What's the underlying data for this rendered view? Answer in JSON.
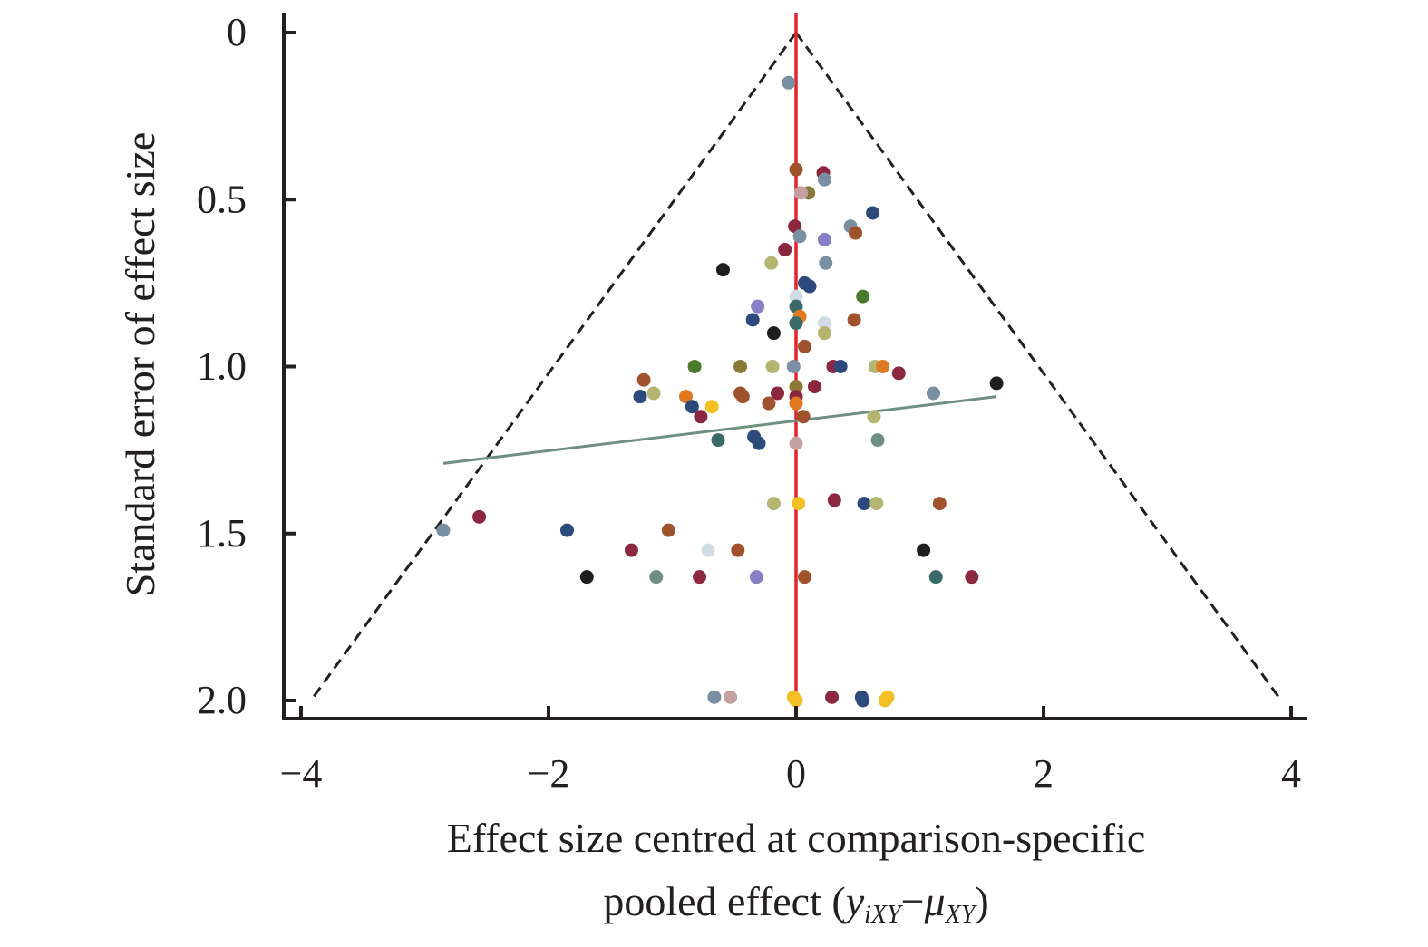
{
  "chart_data": {
    "type": "scatter",
    "title": "",
    "xlabel_line1": "Effect size centred at comparison-specific",
    "xlabel_line2_prefix": "pooled effect (",
    "xlabel_y": "y",
    "xlabel_y_sub": "iXY",
    "xlabel_minus": "−",
    "xlabel_mu": "μ",
    "xlabel_mu_sub": "XY",
    "xlabel_suffix": ")",
    "ylabel": "Standard error of effect size",
    "xlim": [
      -4,
      4
    ],
    "ylim": [
      0,
      2.0
    ],
    "y_reversed": true,
    "x_ticks": [
      -4,
      -2,
      0,
      2,
      4
    ],
    "x_tick_labels": [
      "−4",
      "−2",
      "0",
      "2",
      "4"
    ],
    "y_ticks": [
      0,
      0.5,
      1.0,
      1.5,
      2.0
    ],
    "y_tick_labels": [
      "0",
      "0.5",
      "1.0",
      "1.5",
      "2.0"
    ],
    "zero_line": {
      "x": 0,
      "color": "#e2242b"
    },
    "funnel": {
      "apex": [
        0,
        0
      ],
      "left_base": [
        -3.92,
        2.0
      ],
      "right_base": [
        3.92,
        2.0
      ],
      "style": "dashed",
      "color": "#231f20"
    },
    "regression_line": {
      "from": [
        -2.85,
        1.29
      ],
      "to": [
        1.62,
        1.09
      ],
      "color": "#6f8f82"
    },
    "points": [
      {
        "x": -0.06,
        "y": 0.15,
        "color": "#7a8fa3"
      },
      {
        "x": 0.0,
        "y": 0.41,
        "color": "#a0522d"
      },
      {
        "x": 0.22,
        "y": 0.42,
        "color": "#8b2840"
      },
      {
        "x": 0.23,
        "y": 0.44,
        "color": "#7a8fa3"
      },
      {
        "x": 0.1,
        "y": 0.48,
        "color": "#8a7a3a"
      },
      {
        "x": 0.04,
        "y": 0.48,
        "color": "#c4a0a0"
      },
      {
        "x": 0.62,
        "y": 0.54,
        "color": "#2c4a7c"
      },
      {
        "x": 0.44,
        "y": 0.58,
        "color": "#7a8fa3"
      },
      {
        "x": -0.01,
        "y": 0.58,
        "color": "#8b2840"
      },
      {
        "x": 0.48,
        "y": 0.6,
        "color": "#a0522d"
      },
      {
        "x": 0.03,
        "y": 0.61,
        "color": "#7a8fa3"
      },
      {
        "x": 0.23,
        "y": 0.62,
        "color": "#8680c8"
      },
      {
        "x": -0.09,
        "y": 0.65,
        "color": "#8b2840"
      },
      {
        "x": -0.2,
        "y": 0.69,
        "color": "#b5b572"
      },
      {
        "x": 0.24,
        "y": 0.69,
        "color": "#7a8fa3"
      },
      {
        "x": -0.59,
        "y": 0.71,
        "color": "#1e1e1e"
      },
      {
        "x": 0.07,
        "y": 0.75,
        "color": "#2c4a7c"
      },
      {
        "x": 0.11,
        "y": 0.76,
        "color": "#2c4a7c"
      },
      {
        "x": 0.54,
        "y": 0.79,
        "color": "#4a7a2c"
      },
      {
        "x": 0.0,
        "y": 0.79,
        "color": "#d0dde4"
      },
      {
        "x": 0.0,
        "y": 0.82,
        "color": "#3a6a68"
      },
      {
        "x": -0.31,
        "y": 0.82,
        "color": "#8680c8"
      },
      {
        "x": 0.03,
        "y": 0.85,
        "color": "#e07820"
      },
      {
        "x": 0.47,
        "y": 0.86,
        "color": "#a0522d"
      },
      {
        "x": -0.35,
        "y": 0.86,
        "color": "#2c4a7c"
      },
      {
        "x": 0.0,
        "y": 0.87,
        "color": "#3a6a68"
      },
      {
        "x": 0.23,
        "y": 0.87,
        "color": "#d0dde4"
      },
      {
        "x": -0.18,
        "y": 0.9,
        "color": "#1e1e1e"
      },
      {
        "x": 0.23,
        "y": 0.9,
        "color": "#b5b572"
      },
      {
        "x": 0.07,
        "y": 0.94,
        "color": "#a0522d"
      },
      {
        "x": -0.82,
        "y": 1.0,
        "color": "#4a7a2c"
      },
      {
        "x": -0.45,
        "y": 1.0,
        "color": "#8a7a3a"
      },
      {
        "x": -0.19,
        "y": 1.0,
        "color": "#b5b572"
      },
      {
        "x": -0.02,
        "y": 1.0,
        "color": "#7a8fa3"
      },
      {
        "x": 0.3,
        "y": 1.0,
        "color": "#8b2840"
      },
      {
        "x": 0.36,
        "y": 1.0,
        "color": "#2c4a7c"
      },
      {
        "x": 0.64,
        "y": 1.0,
        "color": "#b5b572"
      },
      {
        "x": 0.7,
        "y": 1.0,
        "color": "#e07820"
      },
      {
        "x": 0.83,
        "y": 1.02,
        "color": "#8b2840"
      },
      {
        "x": 1.62,
        "y": 1.05,
        "color": "#1e1e1e"
      },
      {
        "x": -1.23,
        "y": 1.04,
        "color": "#a0522d"
      },
      {
        "x": 0.0,
        "y": 1.06,
        "color": "#8a7a3a"
      },
      {
        "x": 0.15,
        "y": 1.06,
        "color": "#8b2840"
      },
      {
        "x": -1.15,
        "y": 1.08,
        "color": "#b5b572"
      },
      {
        "x": 1.11,
        "y": 1.08,
        "color": "#7a8fa3"
      },
      {
        "x": -0.45,
        "y": 1.08,
        "color": "#a0522d"
      },
      {
        "x": -0.15,
        "y": 1.08,
        "color": "#8b2840"
      },
      {
        "x": -1.26,
        "y": 1.09,
        "color": "#2c4a7c"
      },
      {
        "x": -0.89,
        "y": 1.09,
        "color": "#e07820"
      },
      {
        "x": -0.43,
        "y": 1.09,
        "color": "#a0522d"
      },
      {
        "x": 0.0,
        "y": 1.09,
        "color": "#8b2840"
      },
      {
        "x": -0.84,
        "y": 1.12,
        "color": "#2c4a7c"
      },
      {
        "x": -0.68,
        "y": 1.12,
        "color": "#f2c022"
      },
      {
        "x": -0.22,
        "y": 1.11,
        "color": "#a0522d"
      },
      {
        "x": 0.0,
        "y": 1.11,
        "color": "#e07820"
      },
      {
        "x": -0.77,
        "y": 1.15,
        "color": "#8b2840"
      },
      {
        "x": 0.06,
        "y": 1.15,
        "color": "#a0522d"
      },
      {
        "x": 0.63,
        "y": 1.15,
        "color": "#b5b572"
      },
      {
        "x": -0.63,
        "y": 1.22,
        "color": "#3a6a68"
      },
      {
        "x": -0.34,
        "y": 1.21,
        "color": "#2c4a7c"
      },
      {
        "x": -0.3,
        "y": 1.23,
        "color": "#2c4a7c"
      },
      {
        "x": 0.0,
        "y": 1.23,
        "color": "#c4a0a0"
      },
      {
        "x": 0.66,
        "y": 1.22,
        "color": "#6f8f82"
      },
      {
        "x": -0.18,
        "y": 1.41,
        "color": "#b5b572"
      },
      {
        "x": 0.02,
        "y": 1.41,
        "color": "#f2c022"
      },
      {
        "x": 0.31,
        "y": 1.4,
        "color": "#8b2840"
      },
      {
        "x": 0.55,
        "y": 1.41,
        "color": "#2c4a7c"
      },
      {
        "x": 0.65,
        "y": 1.41,
        "color": "#b5b572"
      },
      {
        "x": 1.16,
        "y": 1.41,
        "color": "#a0522d"
      },
      {
        "x": -2.56,
        "y": 1.45,
        "color": "#8b2840"
      },
      {
        "x": -2.85,
        "y": 1.49,
        "color": "#7a8fa3"
      },
      {
        "x": -1.85,
        "y": 1.49,
        "color": "#2c4a7c"
      },
      {
        "x": -1.03,
        "y": 1.49,
        "color": "#a0522d"
      },
      {
        "x": -1.33,
        "y": 1.55,
        "color": "#8b2840"
      },
      {
        "x": -0.71,
        "y": 1.55,
        "color": "#d0dde4"
      },
      {
        "x": -0.47,
        "y": 1.55,
        "color": "#a0522d"
      },
      {
        "x": 1.03,
        "y": 1.55,
        "color": "#1e1e1e"
      },
      {
        "x": -1.69,
        "y": 1.63,
        "color": "#1e1e1e"
      },
      {
        "x": -1.13,
        "y": 1.63,
        "color": "#6f8f82"
      },
      {
        "x": -0.78,
        "y": 1.63,
        "color": "#8b2840"
      },
      {
        "x": -0.32,
        "y": 1.63,
        "color": "#8680c8"
      },
      {
        "x": 0.07,
        "y": 1.63,
        "color": "#a0522d"
      },
      {
        "x": 1.13,
        "y": 1.63,
        "color": "#3a6a68"
      },
      {
        "x": 1.42,
        "y": 1.63,
        "color": "#8b2840"
      },
      {
        "x": -0.66,
        "y": 1.99,
        "color": "#7a8fa3"
      },
      {
        "x": -0.53,
        "y": 1.99,
        "color": "#c4a0a0"
      },
      {
        "x": -0.02,
        "y": 1.99,
        "color": "#f2c022"
      },
      {
        "x": 0.0,
        "y": 2.0,
        "color": "#f2c022"
      },
      {
        "x": 0.29,
        "y": 1.99,
        "color": "#8b2840"
      },
      {
        "x": 0.53,
        "y": 1.99,
        "color": "#2c4a7c"
      },
      {
        "x": 0.54,
        "y": 2.0,
        "color": "#2c4a7c"
      },
      {
        "x": 0.72,
        "y": 2.0,
        "color": "#f2c022"
      },
      {
        "x": 0.74,
        "y": 1.99,
        "color": "#f2c022"
      }
    ]
  }
}
